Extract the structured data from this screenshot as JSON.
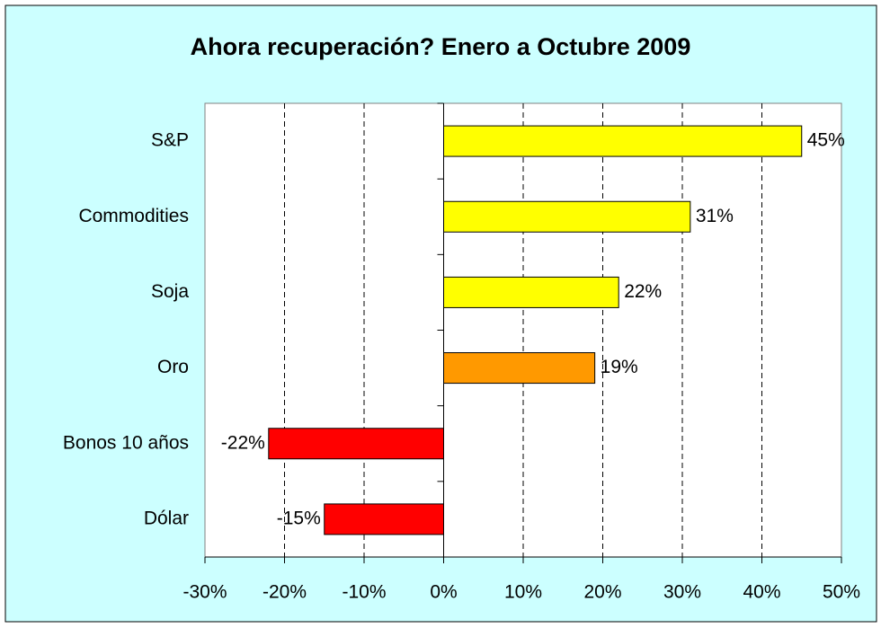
{
  "chart_data": {
    "type": "hbar",
    "title": "Ahora recuperación? Enero a Octubre 2009",
    "categories": [
      "S&P",
      "Commodities",
      "Soja",
      "Oro",
      "Bonos 10 años",
      "Dólar"
    ],
    "values": [
      45,
      31,
      22,
      19,
      -22,
      -15
    ],
    "value_labels": [
      "45%",
      "31%",
      "22%",
      "19%",
      "-22%",
      "-15%"
    ],
    "colors": [
      "#ffff00",
      "#ffff00",
      "#ffff00",
      "#ff9900",
      "#ff0000",
      "#ff0000"
    ],
    "xlim": [
      -30,
      50
    ],
    "xticks": [
      {
        "value": -30,
        "label": "-30%"
      },
      {
        "value": -20,
        "label": "-20%"
      },
      {
        "value": -10,
        "label": "-10%"
      },
      {
        "value": 0,
        "label": "0%"
      },
      {
        "value": 10,
        "label": "10%"
      },
      {
        "value": 20,
        "label": "20%"
      },
      {
        "value": 30,
        "label": "30%"
      },
      {
        "value": 40,
        "label": "40%"
      },
      {
        "value": 50,
        "label": "50%"
      }
    ],
    "grid": true
  }
}
